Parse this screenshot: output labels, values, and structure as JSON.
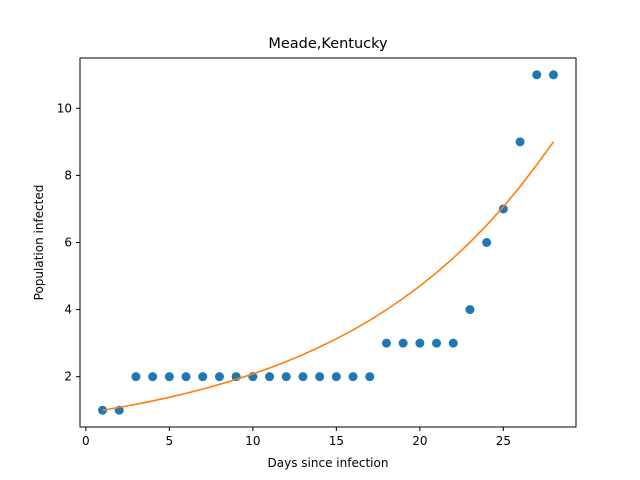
{
  "chart_data": {
    "type": "scatter",
    "title": "Meade,Kentucky",
    "xlabel": "Days since infection",
    "ylabel": "Population infected",
    "xlim": [
      -0.35,
      29.35
    ],
    "ylim": [
      0.5,
      11.5
    ],
    "xticks": [
      0,
      5,
      10,
      15,
      20,
      25
    ],
    "yticks": [
      2,
      4,
      6,
      8,
      10
    ],
    "grid": false,
    "series": [
      {
        "kind": "scatter",
        "color": "#1f77b4",
        "x": [
          1,
          2,
          3,
          4,
          5,
          6,
          7,
          8,
          9,
          10,
          11,
          12,
          13,
          14,
          15,
          16,
          17,
          18,
          19,
          20,
          21,
          22,
          23,
          24,
          25,
          26,
          27,
          28
        ],
        "y": [
          1,
          1,
          2,
          2,
          2,
          2,
          2,
          2,
          2,
          2,
          2,
          2,
          2,
          2,
          2,
          2,
          2,
          3,
          3,
          3,
          3,
          3,
          4,
          6,
          7,
          9,
          11,
          11
        ]
      },
      {
        "kind": "line",
        "color": "#ff7f0e",
        "x": [
          1,
          2,
          3,
          4,
          5,
          6,
          7,
          8,
          9,
          10,
          11,
          12,
          13,
          14,
          15,
          16,
          17,
          18,
          19,
          20,
          21,
          22,
          23,
          24,
          25,
          26,
          27,
          28
        ],
        "y": [
          1.0,
          1.085,
          1.177,
          1.277,
          1.385,
          1.503,
          1.63,
          1.769,
          1.919,
          2.082,
          2.259,
          2.45,
          2.658,
          2.884,
          3.129,
          3.394,
          3.682,
          3.995,
          4.334,
          4.702,
          5.101,
          5.534,
          6.004,
          6.513,
          7.066,
          7.666,
          8.317,
          9.0
        ]
      }
    ]
  }
}
